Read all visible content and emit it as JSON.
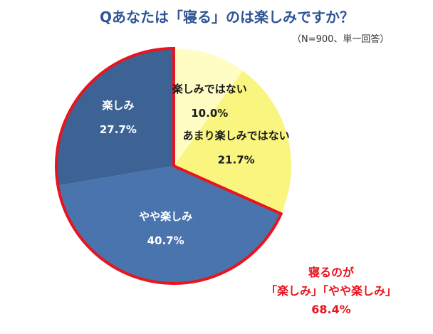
{
  "chart_data": {
    "type": "pie",
    "title": "Qあなたは「寝る」のは楽しみですか？",
    "subtitle": "（N=900、単一回答）",
    "start": "top",
    "direction": "clockwise",
    "slices": [
      {
        "label": "楽しみではない",
        "value": 10.0,
        "value_label": "10.0%",
        "color": "#FFFCC4",
        "text_color": "#1a1a1a"
      },
      {
        "label": "あまり楽しみではない",
        "value": 21.7,
        "value_label": "21.7%",
        "color": "#F9F57E",
        "text_color": "#1a1a1a"
      },
      {
        "label": "やや楽しみ",
        "value": 40.7,
        "value_label": "40.7%",
        "color": "#4A74AE",
        "text_color": "#ffffff"
      },
      {
        "label": "楽しみ",
        "value": 27.7,
        "value_label": "27.7%",
        "color": "#3D6294",
        "text_color": "#ffffff"
      }
    ],
    "highlight": {
      "slices": [
        "やや楽しみ",
        "楽しみ"
      ],
      "outline_color": "#E8141E",
      "lines": [
        "寝るのが",
        "「楽しみ」「やや楽しみ」",
        "68.4%"
      ]
    }
  }
}
